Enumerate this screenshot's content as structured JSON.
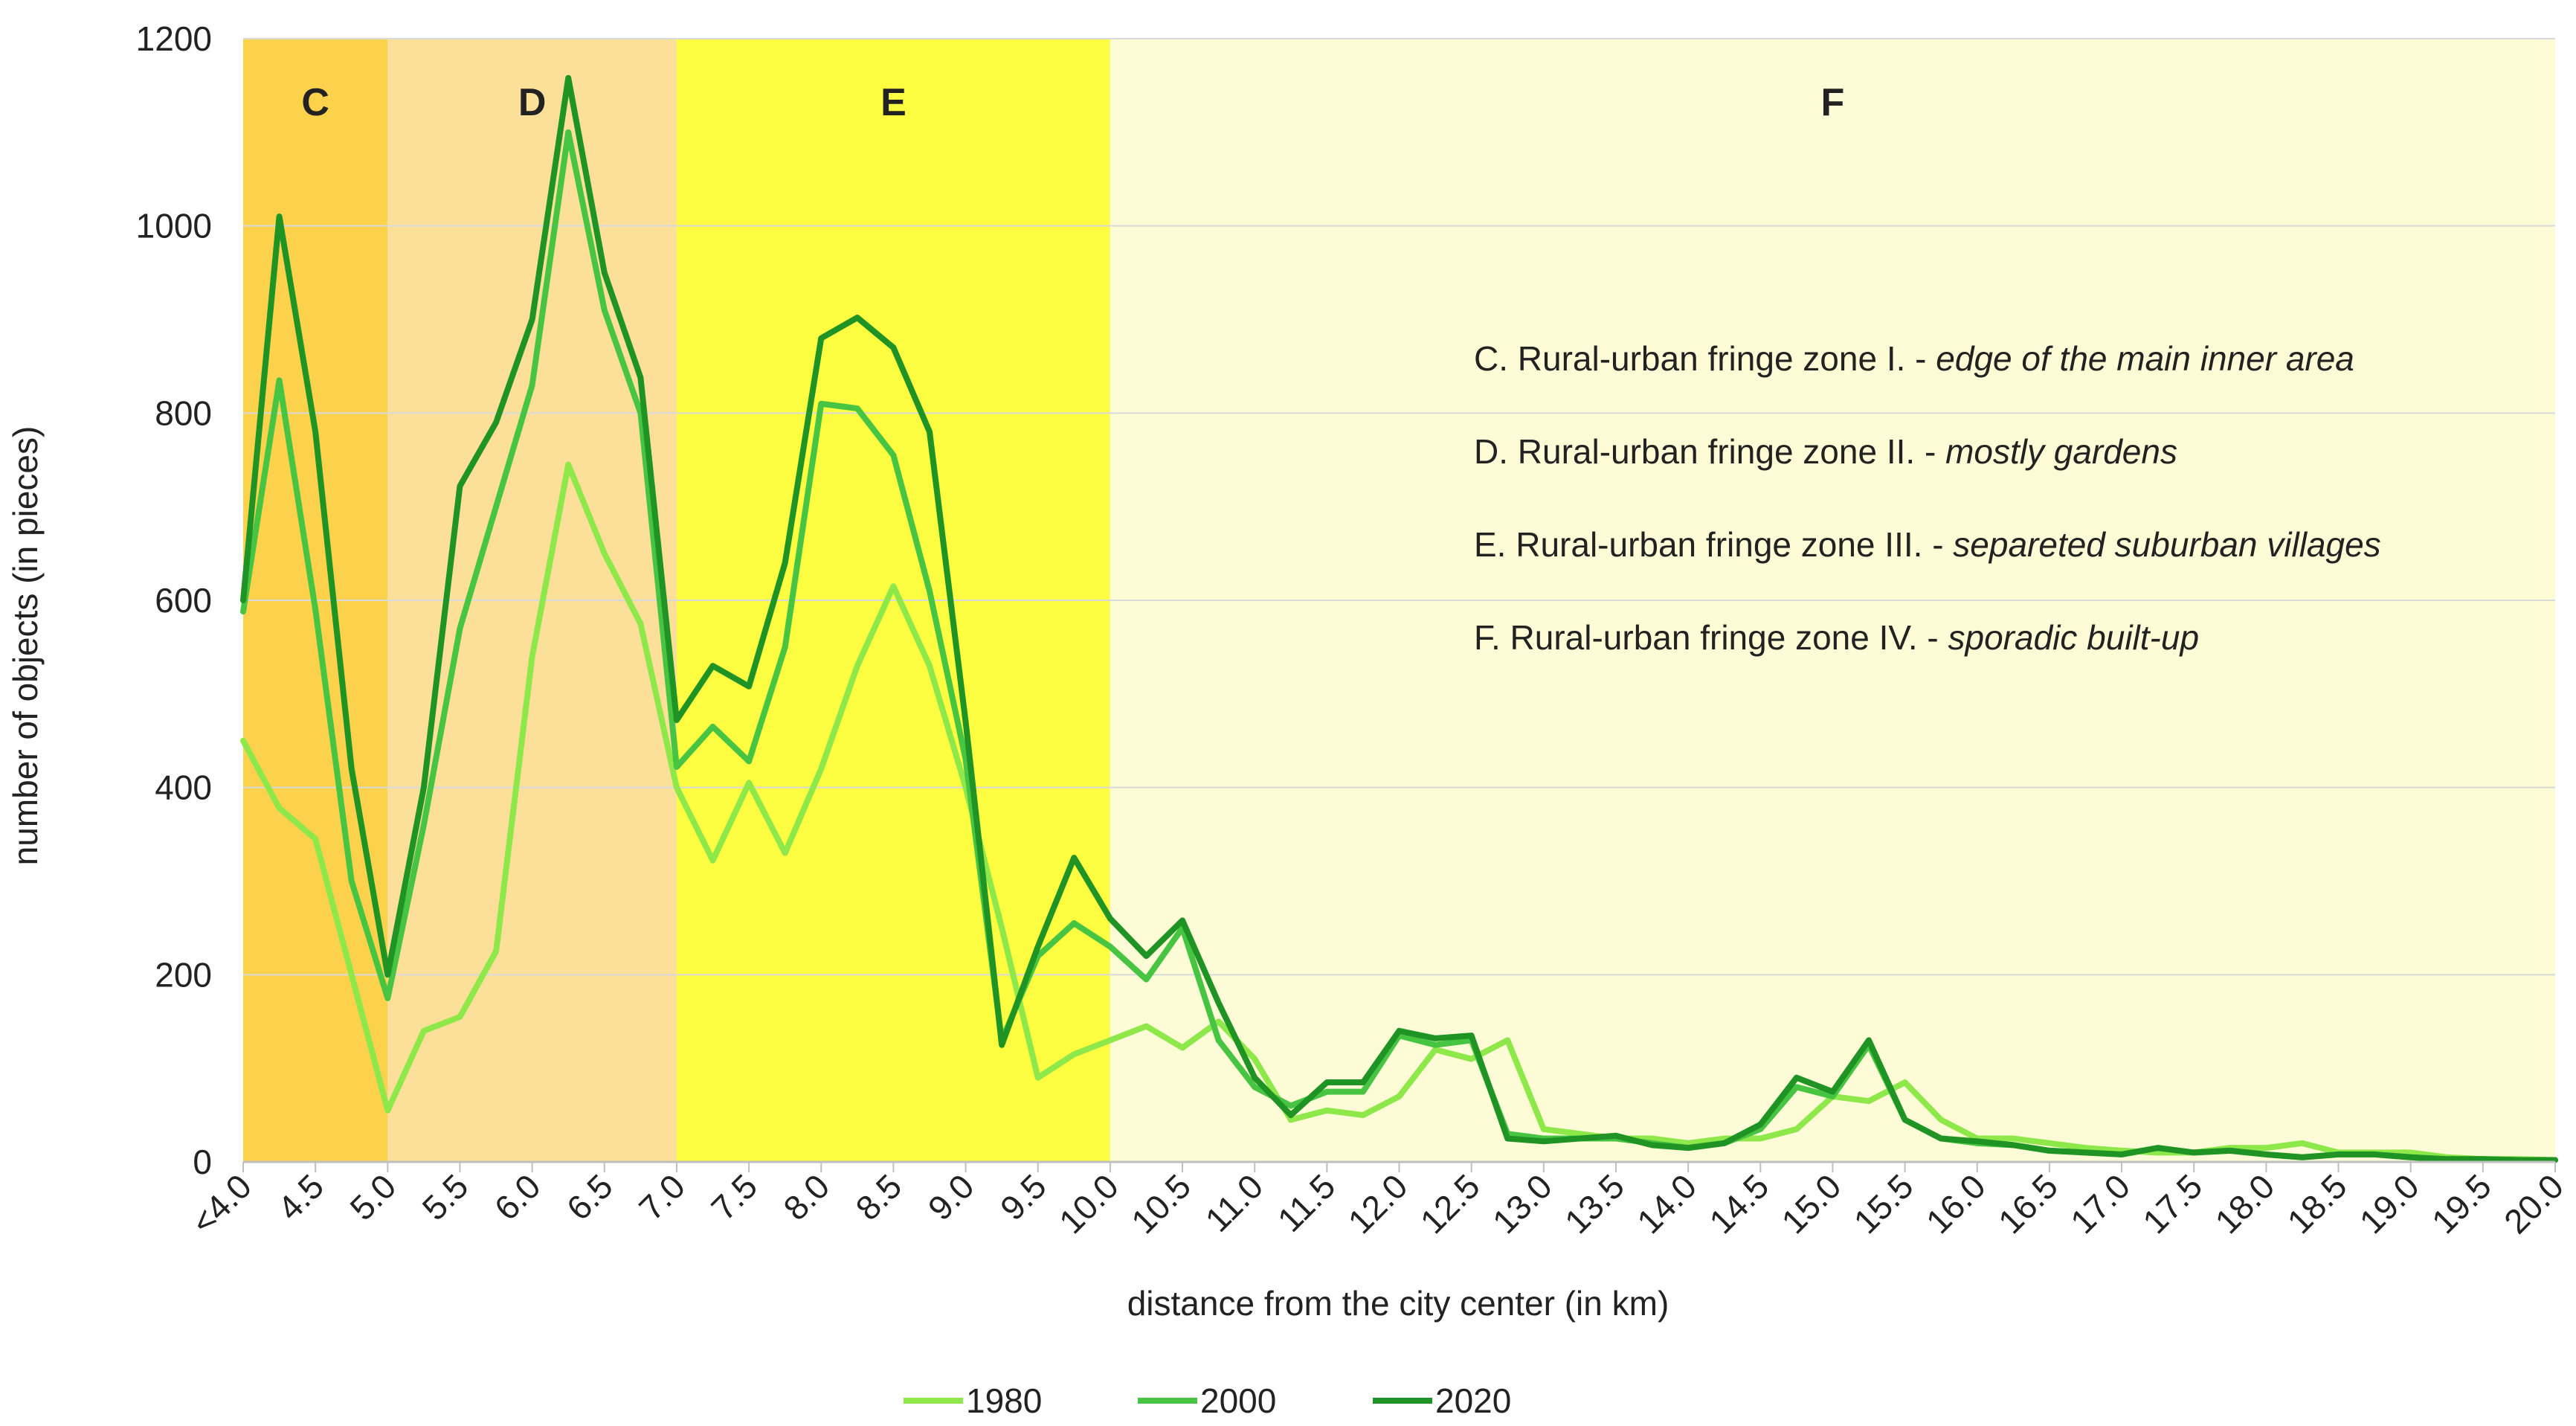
{
  "chart_data": {
    "type": "line",
    "title": "",
    "xlabel": "distance from the city center (in km)",
    "ylabel": "number of objects (in pieces)",
    "ylim": [
      0,
      1200
    ],
    "yticks": [
      "0",
      "200",
      "400",
      "600",
      "800",
      "1000",
      "1200"
    ],
    "x_start": 4.0,
    "x_step": 0.25,
    "x_end": 20.0,
    "xtick_labels": [
      "<4.0",
      "4.5",
      "5.0",
      "5.5",
      "6.0",
      "6.5",
      "7.0",
      "7.5",
      "8.0",
      "8.5",
      "9.0",
      "9.5",
      "10.0",
      "10.5",
      "11.0",
      "11.5",
      "12.0",
      "12.5",
      "13.0",
      "13.5",
      "14.0",
      "14.5",
      "15.0",
      "15.5",
      "16.0",
      "16.5",
      "17.0",
      "17.5",
      "18.0",
      "18.5",
      "19.0",
      "19.5",
      "20.0"
    ],
    "zones": [
      {
        "letter": "C",
        "from": 4.0,
        "to": 5.0,
        "color": "#fcd24c",
        "description_prefix": "C. Rural-urban fringe zone I. - ",
        "description_italic": "edge of the main inner area"
      },
      {
        "letter": "D",
        "from": 5.0,
        "to": 7.0,
        "color": "#fce09a",
        "description_prefix": "D. Rural-urban fringe zone II. - ",
        "description_italic": "mostly gardens"
      },
      {
        "letter": "E",
        "from": 7.0,
        "to": 10.0,
        "color": "#fdfd42",
        "description_prefix": "E. Rural-urban fringe zone III. - ",
        "description_italic": "separeted suburban villages"
      },
      {
        "letter": "F",
        "from": 10.0,
        "to": 20.0,
        "color": "#fdfcd6",
        "description_prefix": "F. Rural-urban fringe zone IV. - ",
        "description_italic": "sporadic built-up"
      }
    ],
    "series": [
      {
        "name": "1980",
        "color": "#8ee84a",
        "values": [
          450,
          378,
          345,
          200,
          55,
          140,
          155,
          225,
          540,
          745,
          650,
          575,
          400,
          322,
          405,
          330,
          420,
          530,
          615,
          530,
          400,
          250,
          90,
          115,
          130,
          145,
          122,
          150,
          110,
          45,
          55,
          50,
          70,
          120,
          110,
          130,
          35,
          30,
          25,
          25,
          20,
          25,
          25,
          35,
          70,
          65,
          85,
          45,
          25,
          25,
          20,
          15,
          12,
          10,
          10,
          15,
          15,
          20,
          10,
          10,
          10,
          5,
          3,
          3,
          2
        ]
      },
      {
        "name": "2000",
        "color": "#48c443",
        "values": [
          588,
          835,
          590,
          300,
          175,
          360,
          570,
          700,
          830,
          1100,
          910,
          800,
          422,
          465,
          428,
          550,
          810,
          805,
          755,
          610,
          430,
          130,
          220,
          255,
          230,
          195,
          250,
          130,
          80,
          60,
          75,
          75,
          135,
          125,
          130,
          30,
          25,
          25,
          25,
          20,
          15,
          20,
          35,
          80,
          70,
          125,
          45,
          25,
          20,
          18,
          12,
          10,
          8,
          15,
          10,
          12,
          8,
          5,
          8,
          8,
          5,
          3,
          3,
          2,
          2
        ]
      },
      {
        "name": "2020",
        "color": "#1f9324",
        "values": [
          600,
          1010,
          780,
          420,
          200,
          400,
          722,
          790,
          900,
          1158,
          950,
          838,
          472,
          530,
          508,
          640,
          880,
          902,
          870,
          780,
          470,
          125,
          230,
          325,
          260,
          220,
          258,
          170,
          90,
          50,
          85,
          85,
          140,
          132,
          135,
          25,
          22,
          25,
          28,
          18,
          15,
          20,
          40,
          90,
          75,
          130,
          45,
          25,
          22,
          18,
          12,
          10,
          8,
          15,
          10,
          12,
          8,
          5,
          8,
          8,
          5,
          3,
          3,
          2,
          2
        ]
      }
    ],
    "legend_position": "bottom"
  }
}
